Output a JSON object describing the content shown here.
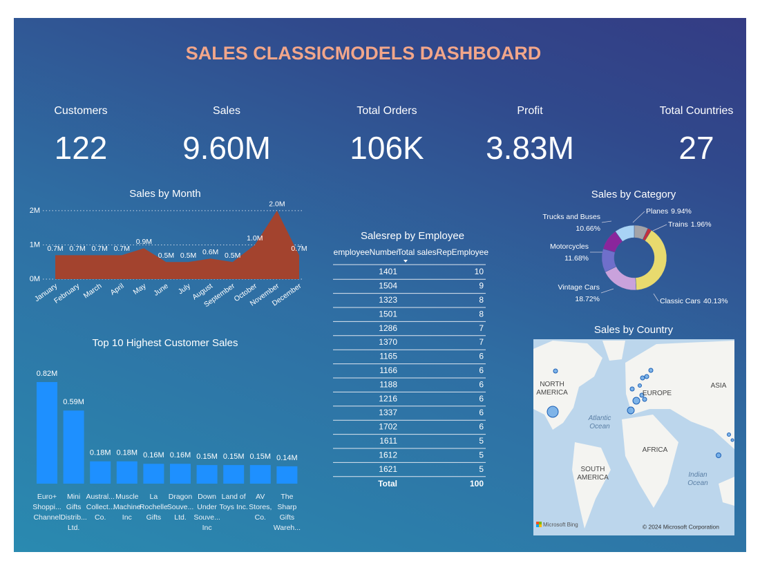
{
  "title": "SALES CLASSICMODELS DASHBOARD",
  "kpis": [
    {
      "label": "Customers",
      "value": "122"
    },
    {
      "label": "Sales",
      "value": "9.60M"
    },
    {
      "label": "Total Orders",
      "value": "106K"
    },
    {
      "label": "Profit",
      "value": "3.83M"
    },
    {
      "label": "Total Countries",
      "value": "27"
    }
  ],
  "chart_data": [
    {
      "type": "area",
      "title": "Sales by Month",
      "categories": [
        "January",
        "February",
        "March",
        "April",
        "May",
        "June",
        "July",
        "August",
        "September",
        "October",
        "November",
        "December"
      ],
      "values": [
        0.7,
        0.7,
        0.7,
        0.7,
        0.9,
        0.5,
        0.5,
        0.6,
        0.5,
        1.0,
        2.0,
        0.7
      ],
      "value_labels": [
        "0.7M",
        "0.7M",
        "0.7M",
        "0.7M",
        "0.9M",
        "0.5M",
        "0.5M",
        "0.6M",
        "0.5M",
        "1.0M",
        "2.0M",
        "0.7M"
      ],
      "color": "#a3432e",
      "ylim": [
        0,
        2.2
      ],
      "yticks": [
        {
          "value": 0,
          "label": "0M"
        },
        {
          "value": 1,
          "label": "1M"
        },
        {
          "value": 2,
          "label": "2M"
        }
      ],
      "grid": true
    },
    {
      "type": "bar",
      "title": "Top 10 Highest Customer Sales",
      "categories": [
        "Euro+ Shoppi... Channel",
        "Mini Gifts Distrib... Ltd.",
        "Austral... Collect... Co.",
        "Muscle Machine Inc",
        "La Rochelle Gifts",
        "Dragon Souve... Ltd.",
        "Down Under Souve... Inc",
        "Land of Toys Inc.",
        "AV Stores, Co.",
        "The Sharp Gifts Wareh..."
      ],
      "values": [
        0.82,
        0.59,
        0.18,
        0.18,
        0.16,
        0.16,
        0.15,
        0.15,
        0.15,
        0.14
      ],
      "value_labels": [
        "0.82M",
        "0.59M",
        "0.18M",
        "0.18M",
        "0.16M",
        "0.16M",
        "0.15M",
        "0.15M",
        "0.15M",
        "0.14M"
      ],
      "color": "#1e90ff"
    },
    {
      "type": "donut",
      "title": "Sales by Category",
      "categories": [
        "Classic Cars",
        "Vintage Cars",
        "Motorcycles",
        "Trucks and Buses",
        "Planes",
        null,
        "Trains"
      ],
      "values": [
        40.13,
        18.72,
        11.68,
        10.66,
        9.94,
        6.91,
        1.96
      ],
      "value_labels": [
        "40.13%",
        "18.72%",
        "11.68%",
        "10.66%",
        "9.94%",
        null,
        "1.96%"
      ],
      "colors": [
        "#e8da6e",
        "#c9a2dc",
        "#6f6fcb",
        "#8a269c",
        "#a9d3f5",
        "#a3a3a8",
        "#c4303c"
      ]
    }
  ],
  "table": {
    "title": "Salesrep by Employee",
    "columns": [
      "employeeNumber",
      "Total salesRepEmployee"
    ],
    "rows": [
      [
        1401,
        10
      ],
      [
        1504,
        9
      ],
      [
        1323,
        8
      ],
      [
        1501,
        8
      ],
      [
        1286,
        7
      ],
      [
        1370,
        7
      ],
      [
        1165,
        6
      ],
      [
        1166,
        6
      ],
      [
        1188,
        6
      ],
      [
        1216,
        6
      ],
      [
        1337,
        6
      ],
      [
        1702,
        6
      ],
      [
        1611,
        5
      ],
      [
        1612,
        5
      ],
      [
        1621,
        5
      ]
    ],
    "total": [
      "Total",
      100
    ]
  },
  "map": {
    "title": "Sales by Country",
    "labels": [
      "NORTH AMERICA",
      "EUROPE",
      "ASIA",
      "Atlantic Ocean",
      "AFRICA",
      "SOUTH AMERICA",
      "Indian Ocean"
    ],
    "attribution": "Microsoft Bing",
    "copyright": "© 2024 Microsoft Corporation"
  }
}
